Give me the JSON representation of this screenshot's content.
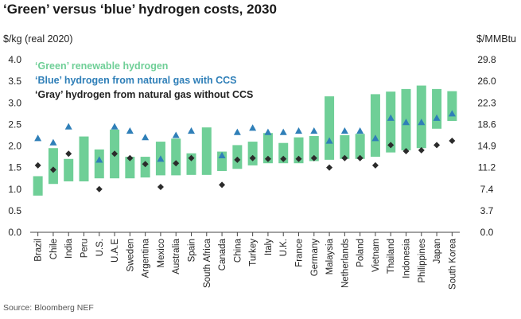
{
  "chart_data": {
    "type": "bar",
    "title": "‘Green’ versus ‘blue’ hydrogen costs, 2030",
    "ylabel": "$/kg (real 2020)",
    "y2label": "$/MMBtu",
    "source": "Source: Bloomberg NEF",
    "ylim": [
      0,
      4.0
    ],
    "yticks": [
      "0.0",
      "0.5",
      "1.0",
      "1.5",
      "2.0",
      "2.5",
      "3.0",
      "3.5",
      "4.0"
    ],
    "y2ticks": [
      "0.0",
      "3.7",
      "7.4",
      "11.2",
      "14.9",
      "18.6",
      "22.3",
      "26.0",
      "29.8"
    ],
    "categories": [
      "Brazil",
      "Chile",
      "India",
      "Peru",
      "U.S.",
      "U.A.E",
      "Sweden",
      "Argentina",
      "Mexico",
      "Australia",
      "Spain",
      "South Africa",
      "Canada",
      "China",
      "Turkey",
      "Italy",
      "U.K.",
      "France",
      "Germany",
      "Malaysia",
      "Netherlands",
      "Poland",
      "Vietnam",
      "Thailand",
      "Indonesia",
      "Philippines",
      "Japan",
      "South Korea"
    ],
    "series": [
      {
        "name": "‘Green’ renewable hydrogen",
        "kind": "range-bar",
        "color": "#6fcf97",
        "low": [
          0.85,
          1.12,
          1.18,
          1.18,
          1.25,
          1.25,
          1.25,
          1.27,
          1.32,
          1.32,
          1.33,
          1.33,
          1.42,
          1.47,
          1.55,
          1.6,
          1.6,
          1.6,
          1.65,
          1.68,
          1.7,
          1.7,
          1.75,
          1.85,
          1.9,
          1.95,
          2.4,
          2.58
        ],
        "high": [
          1.3,
          1.95,
          1.7,
          2.22,
          1.92,
          2.38,
          1.75,
          1.75,
          2.1,
          2.17,
          1.83,
          2.43,
          1.87,
          2.02,
          2.1,
          2.3,
          2.07,
          2.2,
          2.23,
          3.15,
          2.25,
          2.28,
          3.2,
          3.26,
          3.32,
          3.4,
          3.32,
          3.27
        ]
      },
      {
        "name": "‘Blue’ hydrogen from natural gas with CCS",
        "kind": "triangle",
        "color": "#2f7fb8",
        "values": [
          2.18,
          2.08,
          2.45,
          null,
          1.68,
          2.45,
          2.35,
          2.2,
          1.7,
          2.25,
          2.35,
          null,
          1.78,
          2.32,
          2.42,
          2.32,
          2.32,
          2.35,
          2.35,
          2.12,
          2.35,
          2.35,
          2.18,
          2.65,
          2.55,
          2.55,
          2.65,
          2.75
        ]
      },
      {
        "name": "‘Gray’ hydrogen from natural gas without CCS",
        "kind": "diamond",
        "color": "#2b2b2b",
        "values": [
          1.55,
          1.45,
          1.82,
          null,
          1.0,
          1.82,
          1.72,
          1.58,
          1.05,
          1.6,
          1.72,
          null,
          1.1,
          1.68,
          1.72,
          1.7,
          1.7,
          1.7,
          1.72,
          1.5,
          1.72,
          1.72,
          1.55,
          2.02,
          1.88,
          1.9,
          2.02,
          2.12
        ]
      }
    ],
    "legend_position": "top-left",
    "grid": false
  }
}
